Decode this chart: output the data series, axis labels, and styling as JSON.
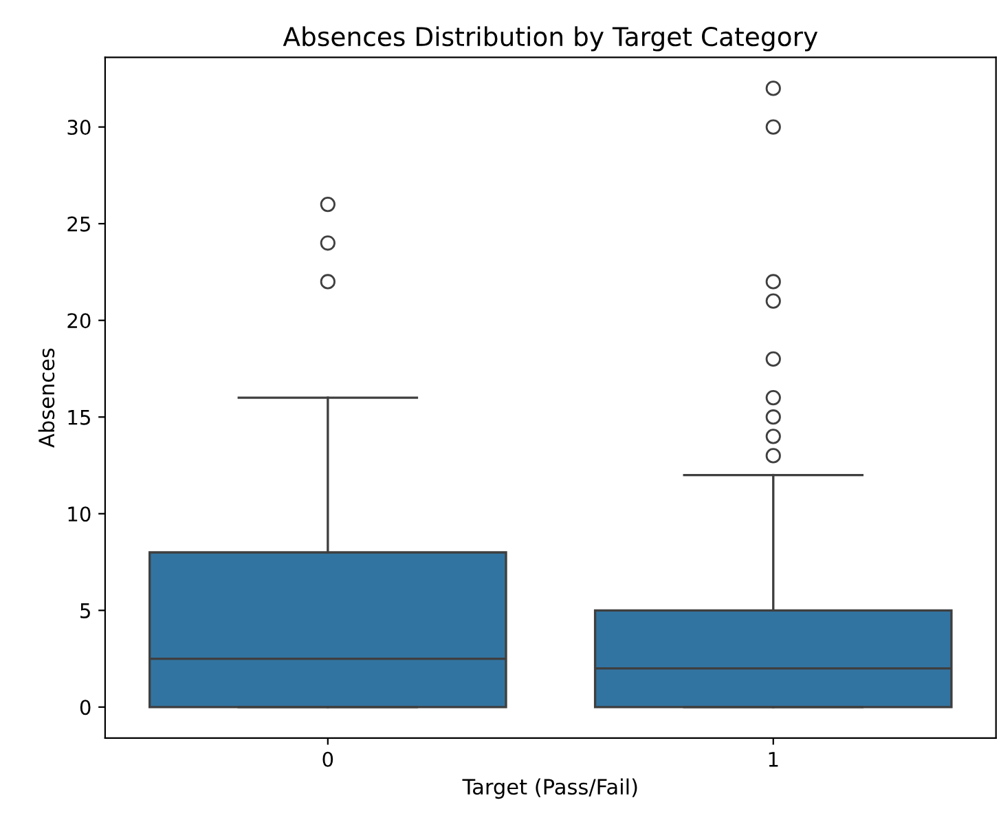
{
  "chart_data": {
    "type": "box",
    "title": "Absences Distribution by Target Category",
    "xlabel": "Target (Pass/Fail)",
    "ylabel": "Absences",
    "categories": [
      "0",
      "1"
    ],
    "series": [
      {
        "color": "#3274a1",
        "boxes": [
          {
            "low": 0,
            "q1": 0,
            "median": 2.5,
            "q3": 8,
            "high": 16,
            "outliers": [
              22,
              24,
              26
            ]
          },
          {
            "low": 0,
            "q1": 0,
            "median": 2,
            "q3": 5,
            "high": 12,
            "outliers": [
              13,
              14,
              15,
              16,
              18,
              21,
              22,
              30,
              32
            ]
          }
        ]
      }
    ],
    "ylim": [
      -1.6,
      33.6
    ],
    "yticks": [
      0,
      5,
      10,
      15,
      20,
      25,
      30
    ],
    "grid": false
  }
}
